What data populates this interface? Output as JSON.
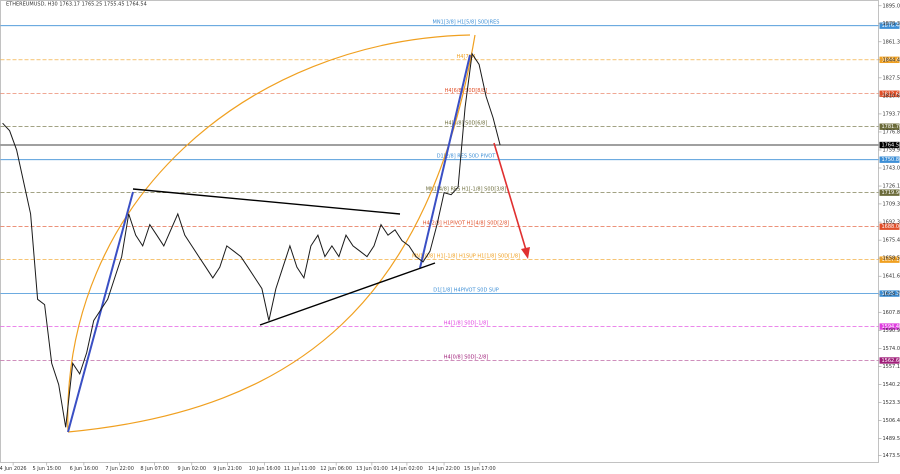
{
  "chart_data": {
    "type": "line",
    "title": "ETHEREUMUSD, H30  1763.17 1765.25 1755.45 1764.54",
    "x": [
      0,
      1,
      2,
      3,
      4,
      5,
      6,
      7,
      8,
      9,
      10,
      11,
      12,
      13,
      14,
      15,
      16,
      17,
      18,
      19,
      20,
      21,
      22,
      23,
      24,
      25,
      26,
      27,
      28,
      29,
      30,
      31,
      32,
      33,
      34,
      35,
      36,
      37,
      38,
      39,
      40,
      41,
      42,
      43,
      44,
      45,
      46,
      47,
      48,
      49,
      50,
      51,
      52,
      53,
      54,
      55,
      56,
      57,
      58,
      59,
      60,
      61,
      62,
      63,
      64,
      65,
      66,
      67,
      68,
      69,
      70,
      71
    ],
    "series": [
      {
        "name": "ETHEREUMUSD",
        "color": "#1a1a1a",
        "values": [
          1785,
          1778,
          1760,
          1730,
          1700,
          1620,
          1615,
          1560,
          1540,
          1500,
          1560,
          1550,
          1570,
          1600,
          1610,
          1620,
          1640,
          1660,
          1700,
          1680,
          1670,
          1690,
          1680,
          1670,
          1685,
          1700,
          1680,
          1670,
          1660,
          1650,
          1640,
          1650,
          1670,
          1665,
          1660,
          1650,
          1640,
          1630,
          1600,
          1630,
          1650,
          1670,
          1650,
          1640,
          1670,
          1680,
          1660,
          1670,
          1660,
          1680,
          1670,
          1665,
          1660,
          1670,
          1690,
          1680,
          1685,
          1675,
          1670,
          1660,
          1655,
          1665,
          1690,
          1720,
          1718,
          1725,
          1800,
          1850,
          1840,
          1810,
          1790,
          1764.54
        ]
      }
    ],
    "xlim": [
      -0.3,
      125
    ],
    "xticks": [
      {
        "value": 1.5,
        "label": "4 Jun 2026"
      },
      {
        "value": 6.3,
        "label": "5 Jun 15:00"
      },
      {
        "value": 11.6,
        "label": "6 Jun 16:00"
      },
      {
        "value": 16.7,
        "label": "7 Jun 22:00"
      },
      {
        "value": 21.7,
        "label": "8 Jun 07:00"
      },
      {
        "value": 27,
        "label": "9 Jun 02:00"
      },
      {
        "value": 32.1,
        "label": "9 Jun 21:00"
      },
      {
        "value": 37.4,
        "label": "10 Jun 16:00"
      },
      {
        "value": 42.4,
        "label": "11 Jun 11:00"
      },
      {
        "value": 47.6,
        "label": "12 Jun 06:00"
      },
      {
        "value": 52.7,
        "label": "13 Jun 01:00"
      },
      {
        "value": 57.7,
        "label": "14 Jun 02:00"
      },
      {
        "value": 63,
        "label": "14 Jun 22:00"
      },
      {
        "value": 68.1,
        "label": "15 Jun 17:00"
      }
    ],
    "ylim": [
      1467,
      1900
    ],
    "yticks": [
      {
        "value": 1895.05,
        "label": "1895.05"
      },
      {
        "value": 1878.35,
        "label": "1878.35"
      },
      {
        "value": 1861.3,
        "label": "1861.30"
      },
      {
        "value": 1844.4,
        "label": "1844.40"
      },
      {
        "value": 1827.5,
        "label": "1827.50"
      },
      {
        "value": 1810.6,
        "label": "1810.60"
      },
      {
        "value": 1793.7,
        "label": "1793.70"
      },
      {
        "value": 1776.8,
        "label": "1776.80"
      },
      {
        "value": 1759.9,
        "label": "1759.90"
      },
      {
        "value": 1743.03,
        "label": "1743.03"
      },
      {
        "value": 1726.1,
        "label": "1726.10"
      },
      {
        "value": 1709.35,
        "label": "1709.35"
      },
      {
        "value": 1692.3,
        "label": "1692.30"
      },
      {
        "value": 1675.4,
        "label": "1675.40"
      },
      {
        "value": 1658.5,
        "label": "1658.50"
      },
      {
        "value": 1641.6,
        "label": "1641.60"
      },
      {
        "value": 1624.7,
        "label": "1624.70"
      },
      {
        "value": 1607.8,
        "label": "1607.80"
      },
      {
        "value": 1590.9,
        "label": "1590.90"
      },
      {
        "value": 1574,
        "label": "1574.00"
      },
      {
        "value": 1557.1,
        "label": "1557.10"
      },
      {
        "value": 1540.2,
        "label": "1540.20"
      },
      {
        "value": 1523.3,
        "label": "1523.30"
      },
      {
        "value": 1506.4,
        "label": "1506.40"
      },
      {
        "value": 1489.5,
        "label": "1489.50"
      },
      {
        "value": 1473.53,
        "label": "1473.53"
      }
    ],
    "levels": [
      {
        "value": 1876.4,
        "label": "1876.40",
        "text": "MN1[3/8] H1[5/8] S0D|RES",
        "color": "#3d8fd6",
        "dash": false
      },
      {
        "value": 1844.4,
        "label": "1844.40",
        "text": "H4[7/8]",
        "color": "#f0a020",
        "dash": true
      },
      {
        "value": 1812.6,
        "label": "1812.60",
        "text": "H4[6/8] S0D[8/8]",
        "color": "#e0502a",
        "dash": true
      },
      {
        "value": 1781.7,
        "label": "1781.70",
        "text": "H4[5/8] S0D[6/8]",
        "color": "#6b6b3a",
        "dash": true
      },
      {
        "value": 1764.54,
        "label": "1764.54",
        "text": "",
        "color": "#000000",
        "dash": false
      },
      {
        "value": 1750.8,
        "label": "1750.80",
        "text": "D1[2/8] RES S0D PIVOT",
        "color": "#3d8fd6",
        "dash": false
      },
      {
        "value": 1719.9,
        "label": "1719.90",
        "text": "MN1[4/8] RES H1[-1/8] S0D[3/8]",
        "color": "#6b6b3a",
        "dash": true
      },
      {
        "value": 1688,
        "label": "1688.00",
        "text": "H4[2/8] H1PIVOT H1[4/8] S0D[2/8]",
        "color": "#e0502a",
        "dash": true
      },
      {
        "value": 1657.1,
        "label": "1657.10",
        "text": "MN1[0/8] H1[-1/8] H1SUP H1[1/8] S0D[1/8]",
        "color": "#f0a020",
        "dash": true
      },
      {
        "value": 1625.3,
        "label": "1625.30",
        "text": "D1[1/8] H4PIVOT S0D SUP",
        "color": "#3d8fd6",
        "dash": false
      },
      {
        "value": 1594.4,
        "label": "1594.40",
        "text": "H4[1/8] S0D[-1/8]",
        "color": "#e040e0",
        "dash": true
      },
      {
        "value": 1562.6,
        "label": "1562.60",
        "text": "H4[0/8] S0D[-2/8]",
        "color": "#a0207a",
        "dash": true
      }
    ]
  }
}
